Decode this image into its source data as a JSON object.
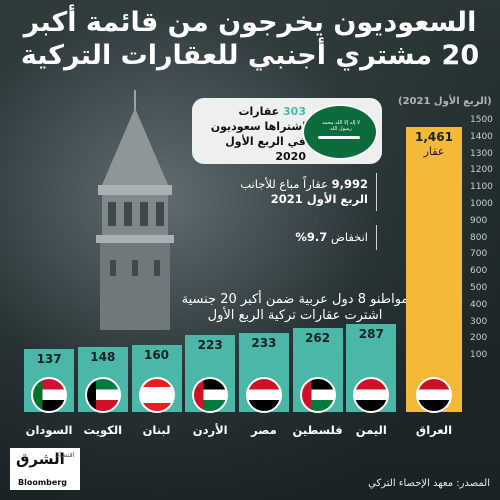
{
  "title": {
    "line1": "السعوديون يخرجون من قائمة أكبر",
    "line2": "20 مشتري أجنبي للعقارات التركية"
  },
  "saudi_card": {
    "count": "303",
    "text_rest": "عقارات اشتراها سعوديون في الربع الأول 2020",
    "flag_text": "لا إله إلا الله محمد رسول الله",
    "flag_colors": {
      "green": "#0b6b3a",
      "white": "#ffffff"
    }
  },
  "facts": [
    {
      "bold": "9,992",
      "text": "عقاراً مباع للأجانب",
      "line2": "الربع الأول 2021"
    },
    {
      "bold": "9.7%",
      "text": "انخفاض"
    }
  ],
  "section_text": {
    "line1": "مواطنو 8 دول عربية ضمن أكبر 20 جنسية",
    "line2": "اشترت عقارات تركية الربع الأول"
  },
  "unit_label": "عقار",
  "source": "المصدر: معهد الإحصاء التركي",
  "logo": {
    "arabic": "الشرق",
    "sub": "اقتصاد",
    "brand": "Bloomberg"
  },
  "colors": {
    "highlight_bar": "#f5b93a",
    "bar": "#4ab7a7",
    "highlight_text": "#4ab7a7"
  },
  "chart_data": {
    "type": "bar",
    "title": "",
    "ylabel": "(الربع الأول 2021)",
    "xlabel": "",
    "ylim": [
      0,
      1500
    ],
    "y_ticks": [
      "100",
      "200",
      "300",
      "400",
      "500",
      "600",
      "700",
      "800",
      "900",
      "1000",
      "1100",
      "1200",
      "1300",
      "1400",
      "1500"
    ],
    "categories": [
      "العراق",
      "اليمن",
      "فلسطين",
      "مصر",
      "الأردن",
      "لبنان",
      "الكويت",
      "السودان"
    ],
    "values": [
      1461,
      287,
      262,
      233,
      223,
      160,
      148,
      137
    ],
    "value_labels": [
      "1,461",
      "287",
      "262",
      "233",
      "223",
      "160",
      "148",
      "137"
    ],
    "flags": [
      "iraq-flag",
      "yemen-flag",
      "palestine-flag",
      "egypt-flag",
      "jordan-flag",
      "lebanon-flag",
      "kuwait-flag",
      "sudan-flag"
    ]
  }
}
